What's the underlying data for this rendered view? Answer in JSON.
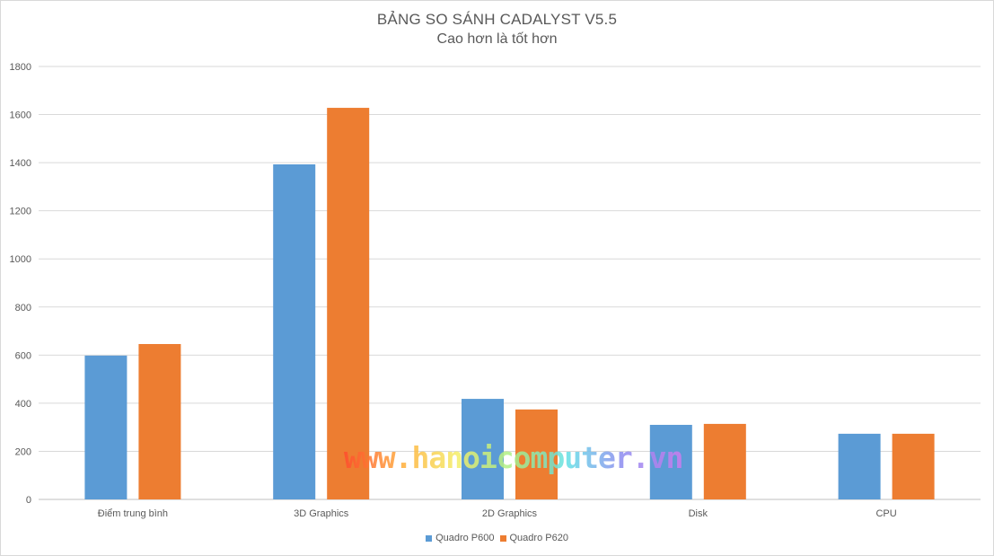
{
  "chart_data": {
    "type": "bar",
    "title": "BẢNG SO SÁNH CADALYST V5.5",
    "subtitle": "Cao hơn là tốt hơn",
    "categories": [
      "Điểm trung bình",
      "3D Graphics",
      "2D Graphics",
      "Disk",
      "CPU"
    ],
    "series": [
      {
        "name": "Quadro P600",
        "color": "#5b9bd5",
        "values": [
          598,
          1393,
          418,
          310,
          273
        ]
      },
      {
        "name": "Quadro P620",
        "color": "#ed7d31",
        "values": [
          646,
          1628,
          374,
          314,
          273
        ]
      }
    ],
    "ylim": [
      0,
      1800
    ],
    "yticks": [
      0,
      200,
      400,
      600,
      800,
      1000,
      1200,
      1400,
      1600,
      1800
    ],
    "grid": true,
    "legend": "bottom",
    "xlabel": "",
    "ylabel": ""
  },
  "watermark": "www.hanoicomputer.vn"
}
